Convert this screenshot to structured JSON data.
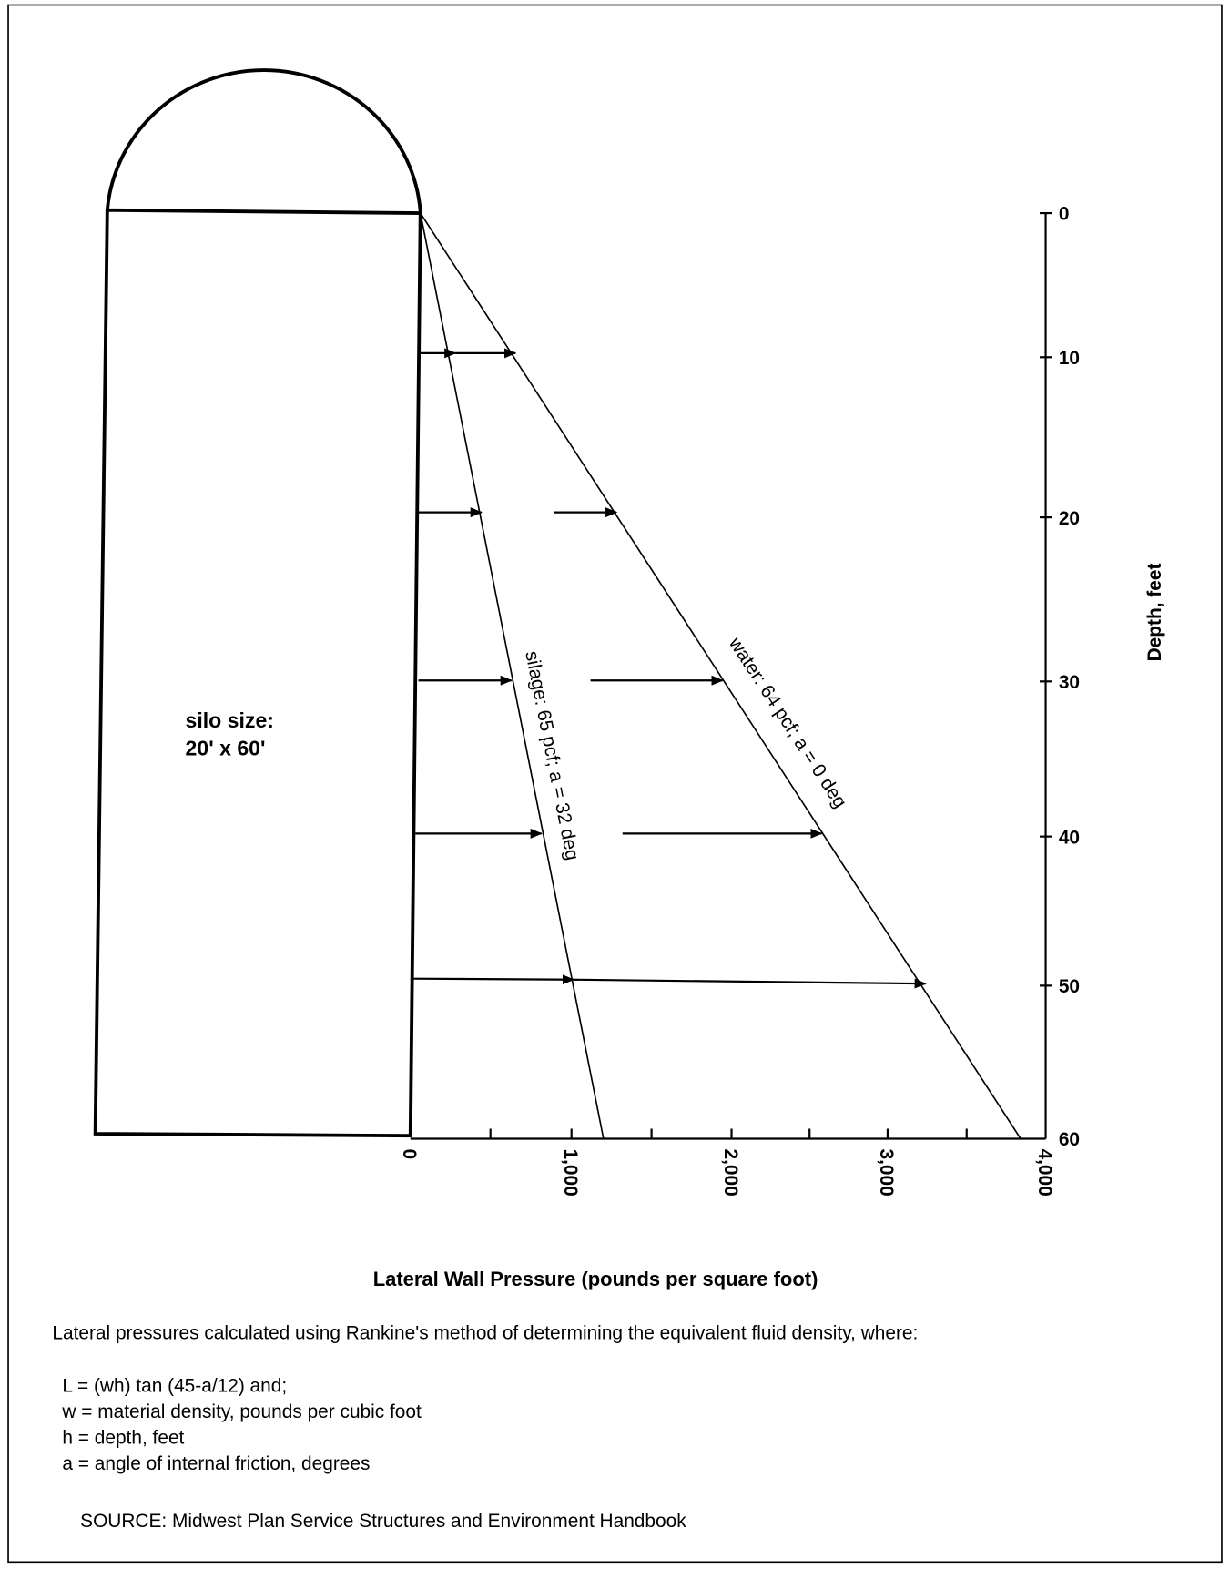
{
  "diagram": {
    "silo_label": [
      "silo size:",
      "20' x 60'"
    ],
    "x_axis": {
      "title": "Lateral Wall Pressure (pounds per square foot)",
      "tick_labels": [
        "0",
        "1,000",
        "2,000",
        "3,000",
        "4,000"
      ]
    },
    "y_axis": {
      "title": "Depth, feet",
      "tick_labels": [
        "0",
        "10",
        "20",
        "30",
        "40",
        "50",
        "60"
      ]
    },
    "lines": [
      {
        "label": "silage:  65 pcf; a = 32 deg"
      },
      {
        "label": "water:  64 pcf; a = 0 deg"
      }
    ],
    "description": "Lateral pressures calculated using Rankine's method of determining the equivalent fluid density, where:",
    "formula_lines": [
      "L = (wh) tan (45-a/12) and;",
      "w = material density, pounds per cubic foot",
      "h = depth, feet",
      "a = angle of internal friction, degrees"
    ],
    "source": "SOURCE:  Midwest Plan Service Structures and Environment Handbook"
  }
}
